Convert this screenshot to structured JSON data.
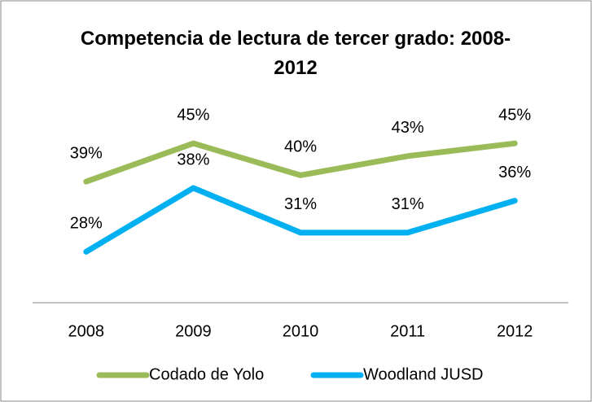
{
  "chart_data": {
    "type": "line",
    "title": "Competencia de lectura de tercer grado: 2008-2012",
    "categories": [
      "2008",
      "2009",
      "2010",
      "2011",
      "2012"
    ],
    "series": [
      {
        "name": "Codado de Yolo",
        "color": "#9bbb59",
        "values": [
          39,
          45,
          40,
          43,
          45
        ],
        "value_labels": [
          "39%",
          "45%",
          "40%",
          "43%",
          "45%"
        ]
      },
      {
        "name": "Woodland JUSD",
        "color": "#00b0f0",
        "values": [
          28,
          38,
          31,
          31,
          36
        ],
        "value_labels": [
          "28%",
          "38%",
          "31%",
          "31%",
          "36%"
        ]
      }
    ],
    "ylim": [
      20,
      50
    ],
    "legend": "bottom"
  }
}
